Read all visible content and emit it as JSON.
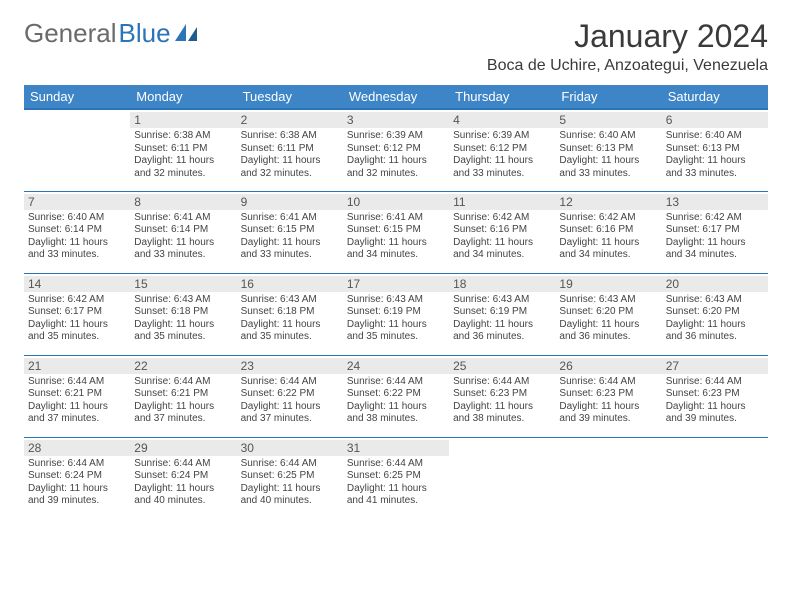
{
  "brand": {
    "general": "General",
    "blue": "Blue"
  },
  "title": "January 2024",
  "location": "Boca de Uchire, Anzoategui, Venezuela",
  "colors": {
    "header_bg": "#3d85c6",
    "header_text": "#ffffff",
    "rule": "#2b74b8",
    "daynum_bg": "#eaeaea",
    "text": "#3a3a3a"
  },
  "weekdays": [
    "Sunday",
    "Monday",
    "Tuesday",
    "Wednesday",
    "Thursday",
    "Friday",
    "Saturday"
  ],
  "start_offset": 1,
  "days": [
    {
      "n": 1,
      "sunrise": "6:38 AM",
      "sunset": "6:11 PM",
      "daylight": "11 hours and 32 minutes."
    },
    {
      "n": 2,
      "sunrise": "6:38 AM",
      "sunset": "6:11 PM",
      "daylight": "11 hours and 32 minutes."
    },
    {
      "n": 3,
      "sunrise": "6:39 AM",
      "sunset": "6:12 PM",
      "daylight": "11 hours and 32 minutes."
    },
    {
      "n": 4,
      "sunrise": "6:39 AM",
      "sunset": "6:12 PM",
      "daylight": "11 hours and 33 minutes."
    },
    {
      "n": 5,
      "sunrise": "6:40 AM",
      "sunset": "6:13 PM",
      "daylight": "11 hours and 33 minutes."
    },
    {
      "n": 6,
      "sunrise": "6:40 AM",
      "sunset": "6:13 PM",
      "daylight": "11 hours and 33 minutes."
    },
    {
      "n": 7,
      "sunrise": "6:40 AM",
      "sunset": "6:14 PM",
      "daylight": "11 hours and 33 minutes."
    },
    {
      "n": 8,
      "sunrise": "6:41 AM",
      "sunset": "6:14 PM",
      "daylight": "11 hours and 33 minutes."
    },
    {
      "n": 9,
      "sunrise": "6:41 AM",
      "sunset": "6:15 PM",
      "daylight": "11 hours and 33 minutes."
    },
    {
      "n": 10,
      "sunrise": "6:41 AM",
      "sunset": "6:15 PM",
      "daylight": "11 hours and 34 minutes."
    },
    {
      "n": 11,
      "sunrise": "6:42 AM",
      "sunset": "6:16 PM",
      "daylight": "11 hours and 34 minutes."
    },
    {
      "n": 12,
      "sunrise": "6:42 AM",
      "sunset": "6:16 PM",
      "daylight": "11 hours and 34 minutes."
    },
    {
      "n": 13,
      "sunrise": "6:42 AM",
      "sunset": "6:17 PM",
      "daylight": "11 hours and 34 minutes."
    },
    {
      "n": 14,
      "sunrise": "6:42 AM",
      "sunset": "6:17 PM",
      "daylight": "11 hours and 35 minutes."
    },
    {
      "n": 15,
      "sunrise": "6:43 AM",
      "sunset": "6:18 PM",
      "daylight": "11 hours and 35 minutes."
    },
    {
      "n": 16,
      "sunrise": "6:43 AM",
      "sunset": "6:18 PM",
      "daylight": "11 hours and 35 minutes."
    },
    {
      "n": 17,
      "sunrise": "6:43 AM",
      "sunset": "6:19 PM",
      "daylight": "11 hours and 35 minutes."
    },
    {
      "n": 18,
      "sunrise": "6:43 AM",
      "sunset": "6:19 PM",
      "daylight": "11 hours and 36 minutes."
    },
    {
      "n": 19,
      "sunrise": "6:43 AM",
      "sunset": "6:20 PM",
      "daylight": "11 hours and 36 minutes."
    },
    {
      "n": 20,
      "sunrise": "6:43 AM",
      "sunset": "6:20 PM",
      "daylight": "11 hours and 36 minutes."
    },
    {
      "n": 21,
      "sunrise": "6:44 AM",
      "sunset": "6:21 PM",
      "daylight": "11 hours and 37 minutes."
    },
    {
      "n": 22,
      "sunrise": "6:44 AM",
      "sunset": "6:21 PM",
      "daylight": "11 hours and 37 minutes."
    },
    {
      "n": 23,
      "sunrise": "6:44 AM",
      "sunset": "6:22 PM",
      "daylight": "11 hours and 37 minutes."
    },
    {
      "n": 24,
      "sunrise": "6:44 AM",
      "sunset": "6:22 PM",
      "daylight": "11 hours and 38 minutes."
    },
    {
      "n": 25,
      "sunrise": "6:44 AM",
      "sunset": "6:23 PM",
      "daylight": "11 hours and 38 minutes."
    },
    {
      "n": 26,
      "sunrise": "6:44 AM",
      "sunset": "6:23 PM",
      "daylight": "11 hours and 39 minutes."
    },
    {
      "n": 27,
      "sunrise": "6:44 AM",
      "sunset": "6:23 PM",
      "daylight": "11 hours and 39 minutes."
    },
    {
      "n": 28,
      "sunrise": "6:44 AM",
      "sunset": "6:24 PM",
      "daylight": "11 hours and 39 minutes."
    },
    {
      "n": 29,
      "sunrise": "6:44 AM",
      "sunset": "6:24 PM",
      "daylight": "11 hours and 40 minutes."
    },
    {
      "n": 30,
      "sunrise": "6:44 AM",
      "sunset": "6:25 PM",
      "daylight": "11 hours and 40 minutes."
    },
    {
      "n": 31,
      "sunrise": "6:44 AM",
      "sunset": "6:25 PM",
      "daylight": "11 hours and 41 minutes."
    }
  ],
  "labels": {
    "sunrise": "Sunrise:",
    "sunset": "Sunset:",
    "daylight": "Daylight:"
  }
}
